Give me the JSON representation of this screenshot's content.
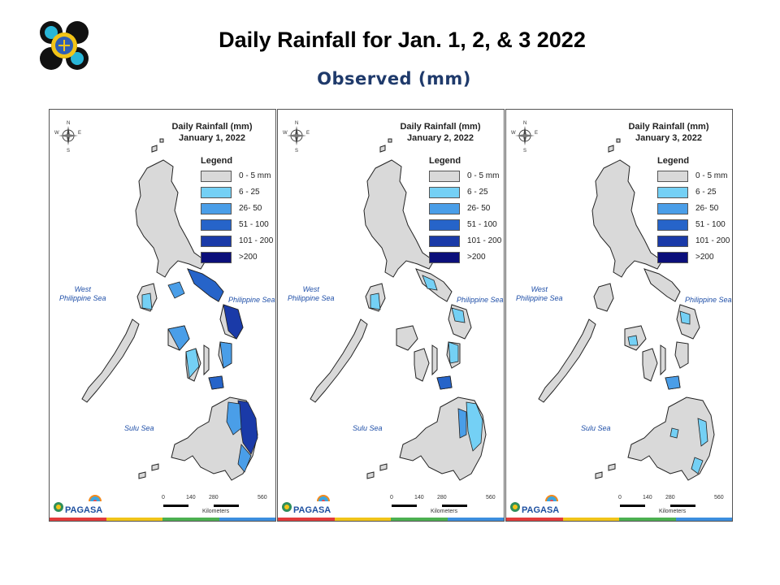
{
  "header": {
    "title": "Daily Rainfall for Jan. 1, 2, & 3 2022",
    "subtitle": "Observed (mm)"
  },
  "colors": {
    "land_dry": "#d9d9d9",
    "range_6_25": "#74d0f5",
    "range_26_50": "#4a9ee8",
    "range_51_100": "#2664c9",
    "range_101_200": "#1a3aa8",
    "range_gt_200": "#0b0f7a",
    "strip": [
      "#e23b3b",
      "#f0c419",
      "#4cb050",
      "#3c8ede"
    ]
  },
  "legend": {
    "title": "Legend",
    "items": [
      {
        "label": "0 - 5 mm",
        "color": "#d9d9d9"
      },
      {
        "label": "6 - 25",
        "color": "#74d0f5"
      },
      {
        "label": "26- 50",
        "color": "#4a9ee8"
      },
      {
        "label": "51 - 100",
        "color": "#2664c9"
      },
      {
        "label": "101 - 200",
        "color": "#1a3aa8"
      },
      {
        "label": ">200",
        "color": "#0b0f7a"
      }
    ]
  },
  "map_labels": {
    "west_sea": "West\nPhilippine Sea",
    "east_sea": "Philippine Sea",
    "sulu_sea": "Sulu Sea",
    "scale_ticks": [
      "0",
      "140",
      "280",
      "560"
    ],
    "scale_unit": "Kilometers",
    "brand": "PAGASA",
    "compass": [
      "N",
      "E",
      "S",
      "W"
    ]
  },
  "panels": [
    {
      "heading": "Daily Rainfall (mm)",
      "date": "January 1, 2022",
      "rain_level": "high"
    },
    {
      "heading": "Daily Rainfall (mm)",
      "date": "January 2, 2022",
      "rain_level": "medium"
    },
    {
      "heading": "Daily Rainfall (mm)",
      "date": "January 3, 2022",
      "rain_level": "low"
    }
  ]
}
